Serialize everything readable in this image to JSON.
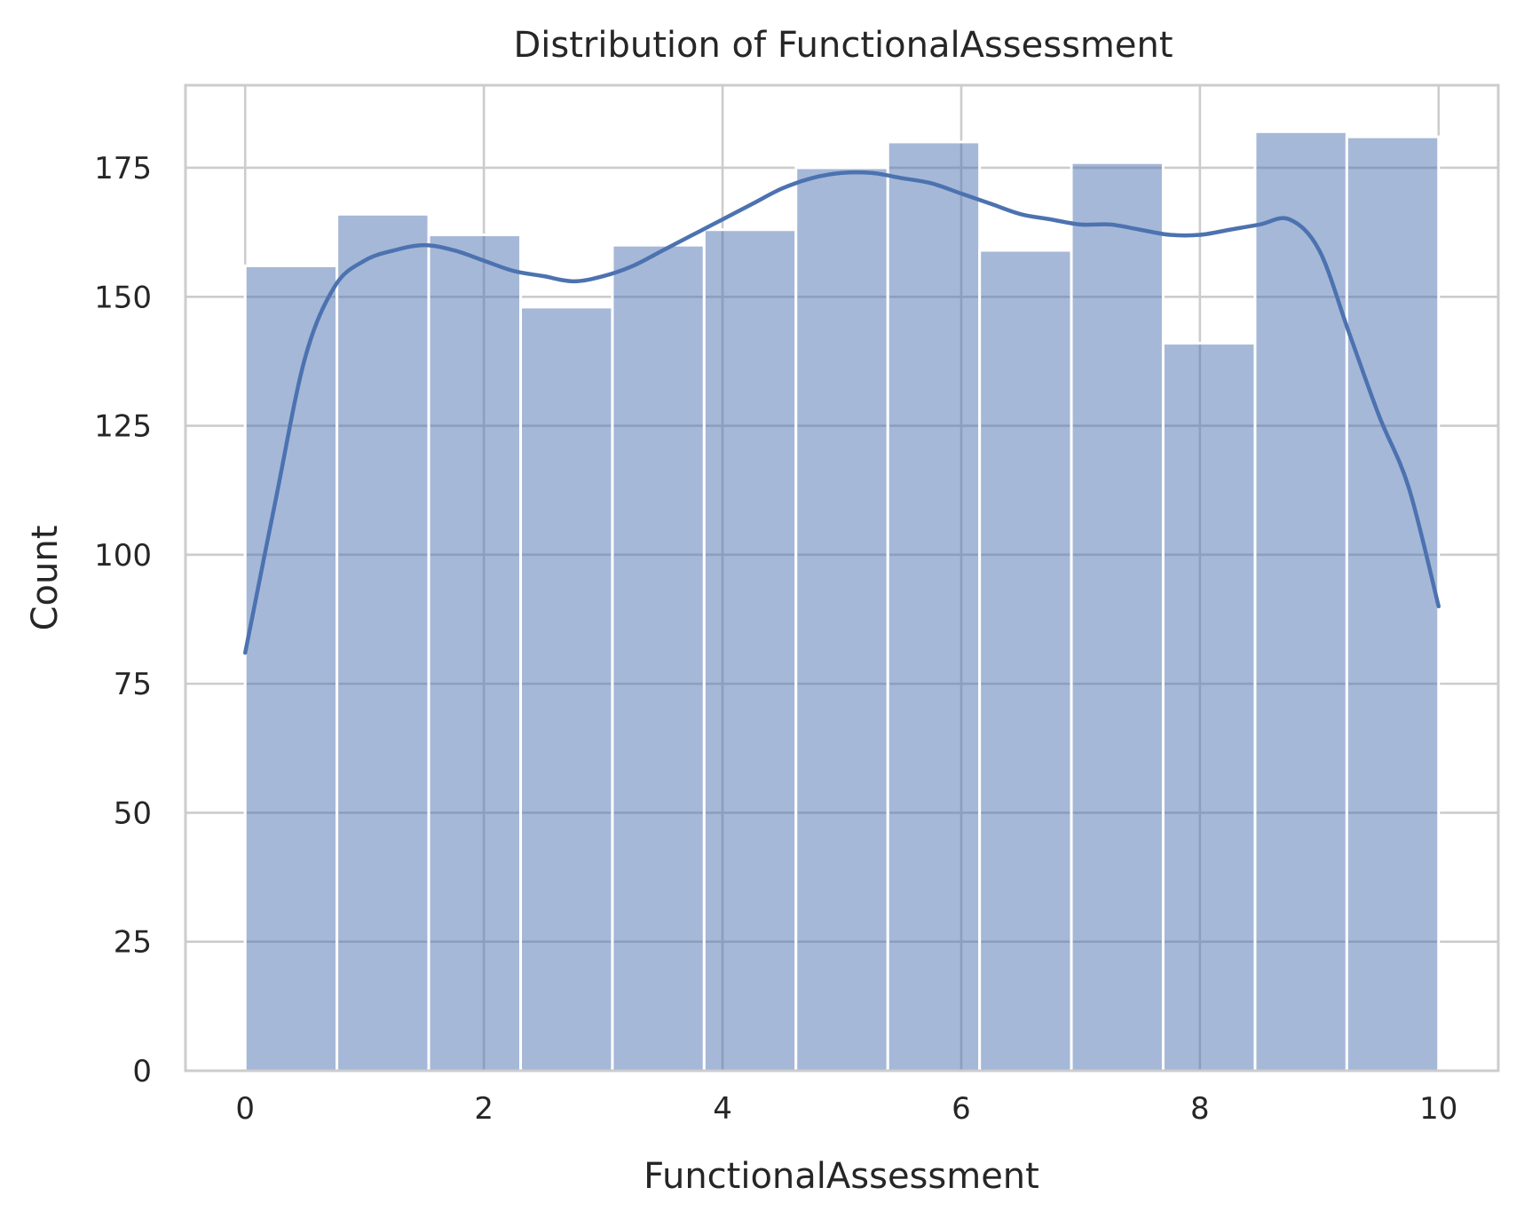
{
  "chart_data": {
    "type": "histogram",
    "title": "Distribution of FunctionalAssessment",
    "xlabel": "FunctionalAssessment",
    "ylabel": "Count",
    "xlim": [
      -0.5,
      10.5
    ],
    "ylim": [
      0,
      191
    ],
    "xticks": [
      0,
      2,
      4,
      6,
      8,
      10
    ],
    "yticks": [
      0,
      25,
      50,
      75,
      100,
      125,
      150,
      175
    ],
    "grid": true,
    "legend": "none",
    "color": "#4c72b0",
    "bin_edges": [
      0,
      0.769,
      1.538,
      2.308,
      3.077,
      3.846,
      4.615,
      5.385,
      6.154,
      6.923,
      7.692,
      8.462,
      9.231,
      10
    ],
    "counts": [
      156,
      166,
      162,
      148,
      160,
      163,
      175,
      180,
      159,
      176,
      141,
      182,
      181
    ],
    "kde": {
      "x": [
        0,
        0.25,
        0.5,
        0.75,
        1.0,
        1.25,
        1.5,
        1.75,
        2.0,
        2.25,
        2.5,
        2.75,
        3.0,
        3.25,
        3.5,
        3.75,
        4.0,
        4.25,
        4.5,
        4.75,
        5.0,
        5.25,
        5.5,
        5.75,
        6.0,
        6.25,
        6.5,
        6.75,
        7.0,
        7.25,
        7.5,
        7.75,
        8.0,
        8.25,
        8.5,
        8.75,
        9.0,
        9.25,
        9.5,
        9.75,
        10.0
      ],
      "y": [
        81,
        110,
        138,
        152,
        157,
        159,
        160,
        159,
        157,
        155,
        154,
        153,
        154,
        156,
        159,
        162,
        165,
        168,
        171,
        173,
        174,
        174,
        173,
        172,
        170,
        168,
        166,
        165,
        164,
        164,
        163,
        162,
        162,
        163,
        164,
        165,
        159,
        143,
        127,
        113,
        90
      ]
    }
  }
}
